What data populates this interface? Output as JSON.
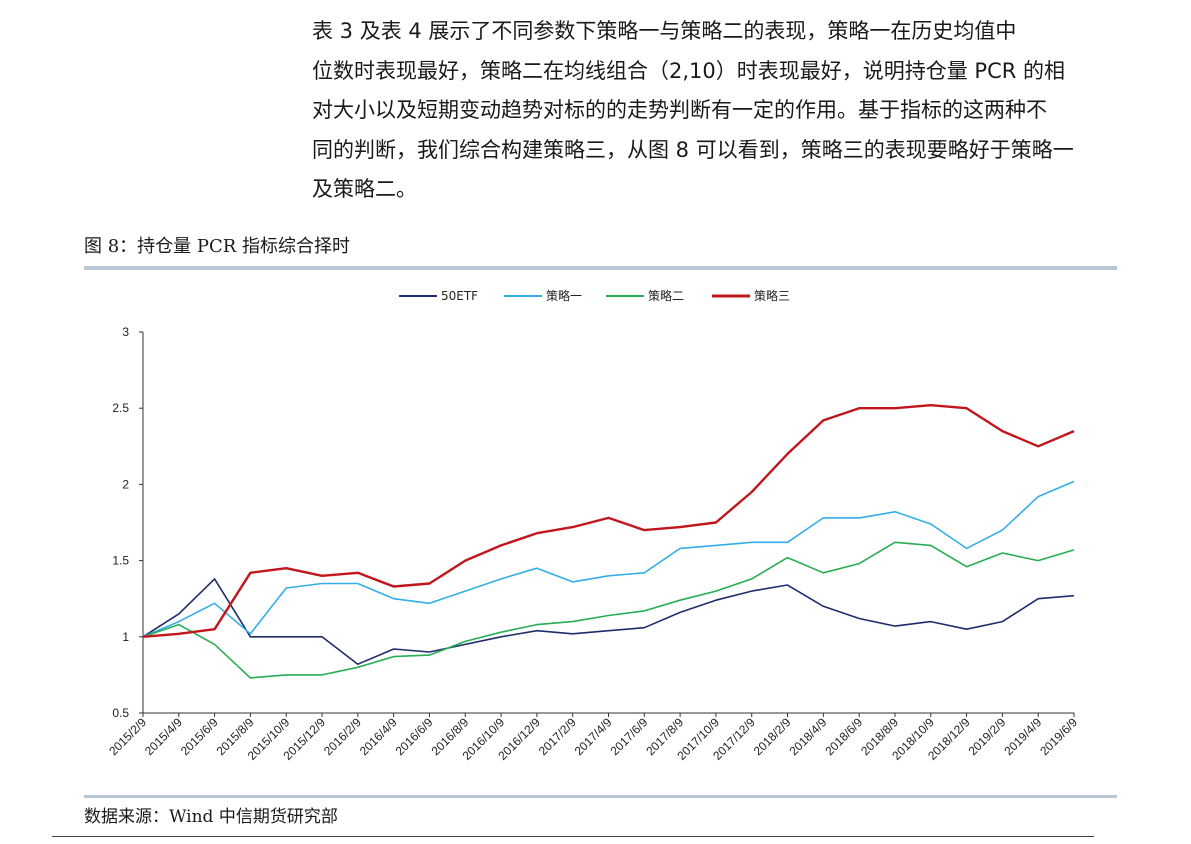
{
  "paragraph_lines": [
    "表 3 及表 4 展示了不同参数下策略一与策略二的表现，策略一在历史均值中",
    "位数时表现最好，策略二在均线组合（2,10）时表现最好，说明持仓量 PCR 的相",
    "对大小以及短期变动趋势对标的的走势判断有一定的作用。基于指标的这两种不",
    "同的判断，我们综合构建策略三，从图 8 可以看到，策略三的表现要略好于策略一",
    "及策略二。"
  ],
  "figure_title": "图 8：持仓量 PCR 指标综合择时",
  "source": "数据来源：Wind  中信期货研究部",
  "chart_data": {
    "type": "line",
    "x": [
      "2015/2/9",
      "2015/4/9",
      "2015/6/9",
      "2015/8/9",
      "2015/10/9",
      "2015/12/9",
      "2016/2/9",
      "2016/4/9",
      "2016/6/9",
      "2016/8/9",
      "2016/10/9",
      "2016/12/9",
      "2017/2/9",
      "2017/4/9",
      "2017/6/9",
      "2017/8/9",
      "2017/10/9",
      "2017/12/9",
      "2018/2/9",
      "2018/4/9",
      "2018/6/9",
      "2018/8/9",
      "2018/10/9",
      "2018/12/9",
      "2019/2/9",
      "2019/4/9",
      "2019/6/9"
    ],
    "x_tick_labels": [
      "2015/2/9",
      "2015/4/9",
      "2015/6/9",
      "2015/8/9",
      "2015/10/9",
      "2015/12/9",
      "2016/2/9",
      "2016/4/9",
      "2016/6/9",
      "2016/8/9",
      "2016/10/9",
      "2016/12/9",
      "2017/2/9",
      "2017/4/9",
      "2017/6/9",
      "2017/8/9",
      "2017/10/9",
      "2017/12/9",
      "2018/2/9",
      "2018/4/9",
      "2018/6/9",
      "2018/8/9",
      "2018/10/9",
      "2018/12/9",
      "2019/2/9",
      "2019/4/9",
      "2019/6/9"
    ],
    "ylim": [
      0.5,
      3
    ],
    "y_ticks": [
      "0.5",
      "1",
      "1.5",
      "2",
      "2.5",
      "3"
    ],
    "legend_position": "top-center",
    "grid": false,
    "series": [
      {
        "name": "50ETF",
        "color": "#1f2d6b",
        "values": [
          1.0,
          1.15,
          1.38,
          1.0,
          1.0,
          1.0,
          0.82,
          0.92,
          0.9,
          0.95,
          1.0,
          1.04,
          1.02,
          1.04,
          1.06,
          1.16,
          1.24,
          1.3,
          1.34,
          1.2,
          1.12,
          1.07,
          1.1,
          1.05,
          1.1,
          1.25,
          1.27
        ]
      },
      {
        "name": "策略一",
        "color": "#33aee8",
        "values": [
          1.0,
          1.1,
          1.22,
          1.02,
          1.32,
          1.35,
          1.35,
          1.25,
          1.22,
          1.3,
          1.38,
          1.45,
          1.36,
          1.4,
          1.42,
          1.58,
          1.6,
          1.62,
          1.62,
          1.78,
          1.78,
          1.82,
          1.74,
          1.58,
          1.7,
          1.92,
          2.02
        ]
      },
      {
        "name": "策略二",
        "color": "#27ad52",
        "values": [
          1.0,
          1.08,
          0.95,
          0.73,
          0.75,
          0.75,
          0.8,
          0.87,
          0.88,
          0.97,
          1.03,
          1.08,
          1.1,
          1.14,
          1.17,
          1.24,
          1.3,
          1.38,
          1.52,
          1.42,
          1.48,
          1.62,
          1.6,
          1.46,
          1.55,
          1.5,
          1.57
        ]
      },
      {
        "name": "策略三",
        "color": "#c0161c",
        "values": [
          1.0,
          1.02,
          1.05,
          1.42,
          1.45,
          1.4,
          1.42,
          1.33,
          1.35,
          1.5,
          1.6,
          1.68,
          1.72,
          1.78,
          1.7,
          1.72,
          1.75,
          1.95,
          2.2,
          2.42,
          2.5,
          2.5,
          2.52,
          2.5,
          2.35,
          2.25,
          2.35
        ]
      }
    ]
  }
}
